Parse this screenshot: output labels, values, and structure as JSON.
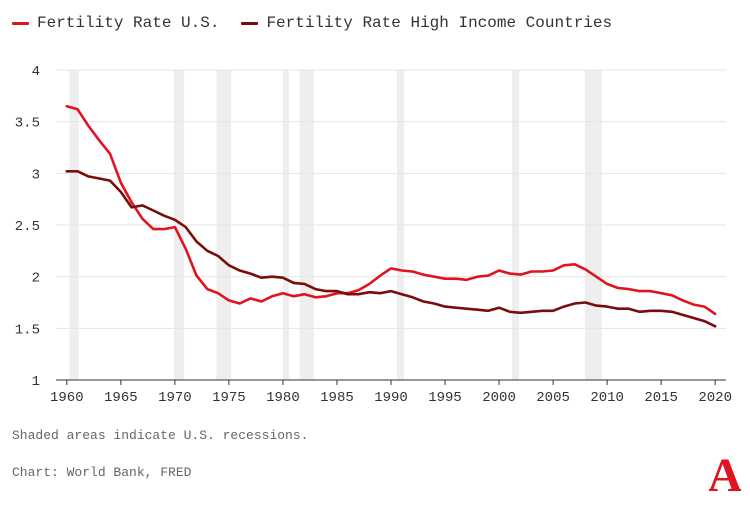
{
  "chart_data": {
    "type": "line",
    "title": "",
    "xlabel": "",
    "ylabel": "",
    "xlim": [
      1959,
      2021
    ],
    "ylim": [
      1,
      4
    ],
    "x_ticks": [
      1960,
      1965,
      1970,
      1975,
      1980,
      1985,
      1990,
      1995,
      2000,
      2005,
      2010,
      2015,
      2020
    ],
    "y_ticks": [
      1,
      1.5,
      2,
      2.5,
      3,
      3.5,
      4
    ],
    "y_tick_labels": [
      "1",
      "1.5",
      "2",
      "2.5",
      "3",
      "3.5",
      "4"
    ],
    "grid": "horizontal",
    "legend_position": "top-left",
    "colors": {
      "recession": "#eeeeee",
      "grid": "#e6e6e6",
      "axis": "#333333"
    },
    "recessions": [
      [
        1960.25,
        1961.1
      ],
      [
        1969.9,
        1970.85
      ],
      [
        1973.85,
        1975.2
      ],
      [
        1980.0,
        1980.55
      ],
      [
        1981.55,
        1982.85
      ],
      [
        1990.55,
        1991.2
      ],
      [
        2001.2,
        2001.85
      ],
      [
        2007.95,
        2009.5
      ]
    ],
    "x": [
      1960,
      1961,
      1962,
      1963,
      1964,
      1965,
      1966,
      1967,
      1968,
      1969,
      1970,
      1971,
      1972,
      1973,
      1974,
      1975,
      1976,
      1977,
      1978,
      1979,
      1980,
      1981,
      1982,
      1983,
      1984,
      1985,
      1986,
      1987,
      1988,
      1989,
      1990,
      1991,
      1992,
      1993,
      1994,
      1995,
      1996,
      1997,
      1998,
      1999,
      2000,
      2001,
      2002,
      2003,
      2004,
      2005,
      2006,
      2007,
      2008,
      2009,
      2010,
      2011,
      2012,
      2013,
      2014,
      2015,
      2016,
      2017,
      2018,
      2019,
      2020
    ],
    "series": [
      {
        "name": "Fertility Rate U.S.",
        "color": "#e0141e",
        "values": [
          3.65,
          3.62,
          3.46,
          3.32,
          3.19,
          2.91,
          2.72,
          2.56,
          2.46,
          2.46,
          2.48,
          2.27,
          2.01,
          1.88,
          1.84,
          1.77,
          1.74,
          1.79,
          1.76,
          1.81,
          1.84,
          1.81,
          1.83,
          1.8,
          1.81,
          1.84,
          1.84,
          1.87,
          1.93,
          2.01,
          2.08,
          2.06,
          2.05,
          2.02,
          2.0,
          1.98,
          1.98,
          1.97,
          2.0,
          2.01,
          2.06,
          2.03,
          2.02,
          2.05,
          2.05,
          2.06,
          2.11,
          2.12,
          2.07,
          2.0,
          1.93,
          1.89,
          1.88,
          1.86,
          1.86,
          1.84,
          1.82,
          1.77,
          1.73,
          1.71,
          1.64
        ]
      },
      {
        "name": "Fertility Rate High Income Countries",
        "color": "#7a0c0c",
        "values": [
          3.02,
          3.02,
          2.97,
          2.95,
          2.93,
          2.82,
          2.67,
          2.69,
          2.64,
          2.59,
          2.55,
          2.48,
          2.34,
          2.25,
          2.2,
          2.11,
          2.06,
          2.03,
          1.99,
          2.0,
          1.99,
          1.94,
          1.93,
          1.88,
          1.86,
          1.86,
          1.83,
          1.83,
          1.85,
          1.84,
          1.86,
          1.83,
          1.8,
          1.76,
          1.74,
          1.71,
          1.7,
          1.69,
          1.68,
          1.67,
          1.7,
          1.66,
          1.65,
          1.66,
          1.67,
          1.67,
          1.71,
          1.74,
          1.75,
          1.72,
          1.71,
          1.69,
          1.69,
          1.66,
          1.67,
          1.67,
          1.66,
          1.63,
          1.6,
          1.57,
          1.52
        ]
      }
    ]
  },
  "note": "Shaded areas indicate U.S. recessions.",
  "source": "Chart: World Bank, FRED",
  "logo_letter": "A"
}
